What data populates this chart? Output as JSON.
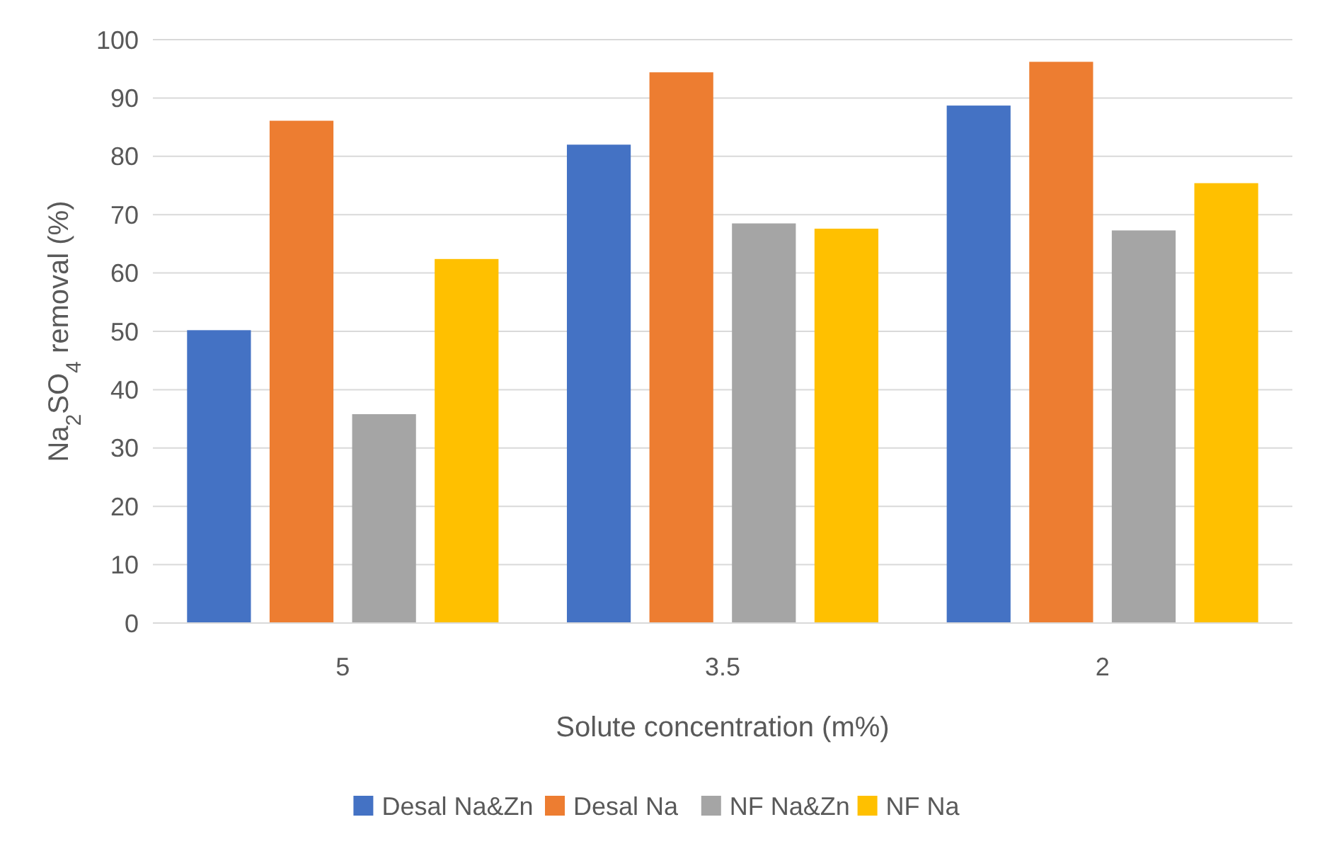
{
  "chart_data": {
    "type": "bar",
    "xlabel": "Solute concentration (m%)",
    "ylabel": "Na$_{2}$SO$_{4}$ removal (%)",
    "categories": [
      "5",
      "3.5",
      "2"
    ],
    "series": [
      {
        "name": "Desal Na&Zn",
        "color": "#4472c4",
        "values": [
          50.2,
          82,
          88.7
        ]
      },
      {
        "name": "Desal Na",
        "color": "#ed7d31",
        "values": [
          86.1,
          94.4,
          96.2
        ]
      },
      {
        "name": "NF Na&Zn",
        "color": "#a5a5a5",
        "values": [
          35.8,
          68.5,
          67.3
        ]
      },
      {
        "name": "NF Na",
        "color": "#ffc000",
        "values": [
          62.4,
          67.6,
          75.4
        ]
      }
    ],
    "ylim": [
      0,
      100
    ],
    "yticks": [
      0,
      10,
      20,
      30,
      40,
      50,
      60,
      70,
      80,
      90,
      100
    ],
    "grid": "y",
    "legend": "bottom"
  }
}
